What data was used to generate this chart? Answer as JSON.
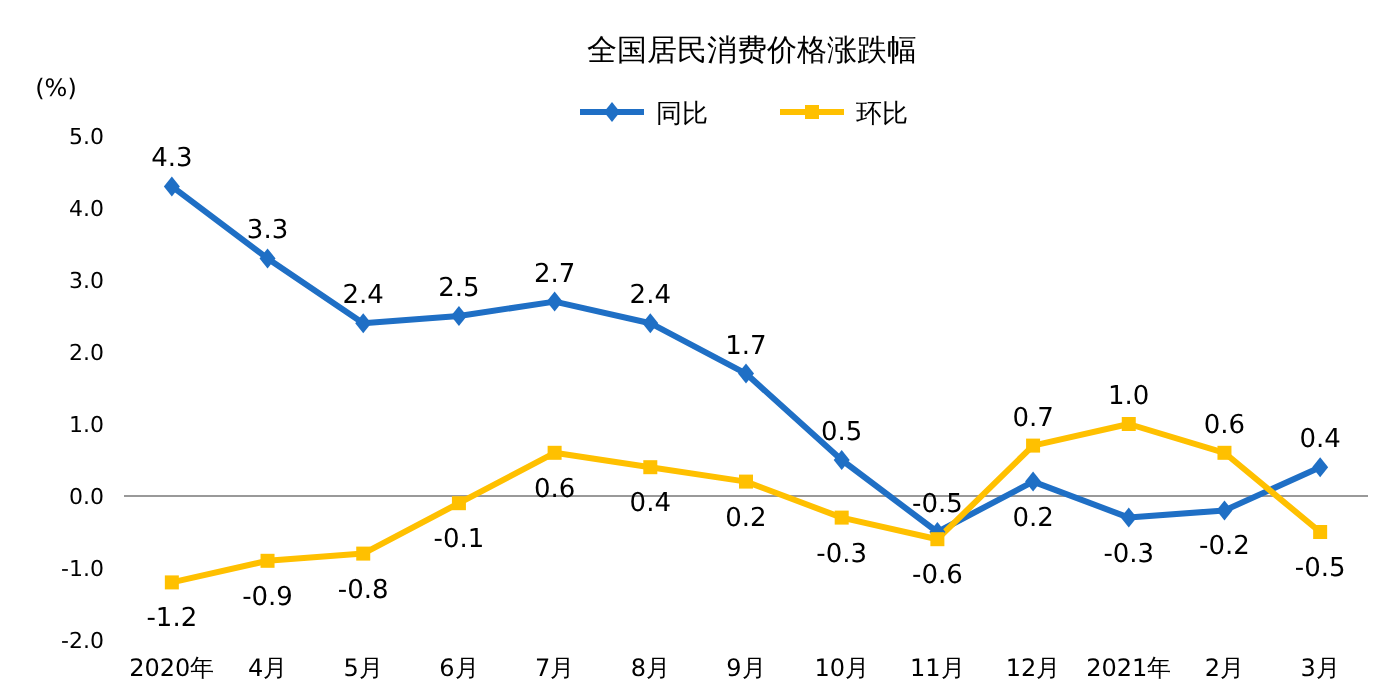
{
  "chart_data": {
    "type": "line",
    "title": "全国居民消费价格涨跌幅",
    "ylabel": "(%)",
    "categories": [
      "2020年",
      "4月",
      "5月",
      "6月",
      "7月",
      "8月",
      "9月",
      "10月",
      "11月",
      "12月",
      "2021年",
      "2月",
      "3月"
    ],
    "series": [
      {
        "name": "同比",
        "color": "#1f6fc5",
        "marker": "diamond",
        "values": [
          4.3,
          3.3,
          2.4,
          2.5,
          2.7,
          2.4,
          1.7,
          0.5,
          -0.5,
          0.2,
          -0.3,
          -0.2,
          0.4
        ],
        "value_labels": [
          "4.3",
          "3.3",
          "2.4",
          "2.5",
          "2.7",
          "2.4",
          "1.7",
          "0.5",
          "-0.5",
          "0.2",
          "-0.3",
          "-0.2",
          "0.4"
        ]
      },
      {
        "name": "环比",
        "color": "#ffc000",
        "marker": "square",
        "values": [
          -1.2,
          -0.9,
          -0.8,
          -0.1,
          0.6,
          0.4,
          0.2,
          -0.3,
          -0.6,
          0.7,
          1.0,
          0.6,
          -0.5
        ],
        "value_labels": [
          "-1.2",
          "-0.9",
          "-0.8",
          "-0.1",
          "0.6",
          "0.4",
          "0.2",
          "-0.3",
          "-0.6",
          "0.7",
          "1.0",
          "0.6",
          "-0.5"
        ]
      }
    ],
    "ylim": [
      -2,
      5
    ],
    "yticks": [
      {
        "value": -2,
        "label": "-2.0"
      },
      {
        "value": -1,
        "label": "-1.0"
      },
      {
        "value": 0,
        "label": "0.0"
      },
      {
        "value": 1,
        "label": "1.0"
      },
      {
        "value": 2,
        "label": "2.0"
      },
      {
        "value": 3,
        "label": "3.0"
      },
      {
        "value": 4,
        "label": "4.0"
      },
      {
        "value": 5,
        "label": "5.0"
      }
    ],
    "legend": "top",
    "line_style": "solid"
  }
}
